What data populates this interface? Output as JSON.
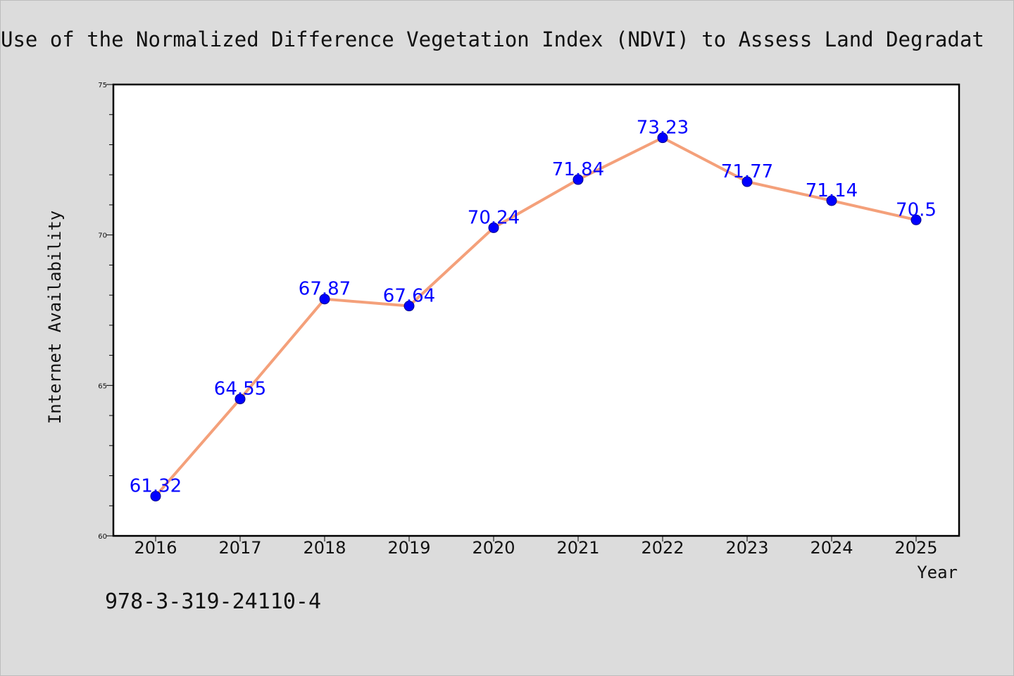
{
  "header": {
    "title": "Use of the Normalized Difference Vegetation Index (NDVI) to Assess Land Degradat"
  },
  "footer": {
    "isbn": "978-3-319-24110-4"
  },
  "colors": {
    "background": "#dcdcdc",
    "plot_background": "#ffffff",
    "line": "#f4a07a",
    "marker": "#0000ff",
    "data_label": "#0000ff"
  },
  "chart_data": {
    "type": "line",
    "title": "Use of the Normalized Difference Vegetation Index (NDVI) to Assess Land Degradat",
    "xlabel": "Year",
    "ylabel": "Internet Availability",
    "categories": [
      "2016",
      "2017",
      "2018",
      "2019",
      "2020",
      "2021",
      "2022",
      "2023",
      "2024",
      "2025"
    ],
    "series": [
      {
        "values": [
          61.32,
          64.55,
          67.87,
          67.64,
          70.24,
          71.84,
          73.23,
          71.77,
          71.14,
          70.5
        ]
      }
    ],
    "data_labels": [
      "61.32",
      "64.55",
      "67.87",
      "67.64",
      "70.24",
      "71.84",
      "73.23",
      "71.77",
      "71.14",
      "70.5"
    ],
    "ylim": [
      60,
      75
    ],
    "yticks": [
      "60",
      "65",
      "70",
      "75"
    ],
    "grid": false,
    "legend": "none"
  }
}
